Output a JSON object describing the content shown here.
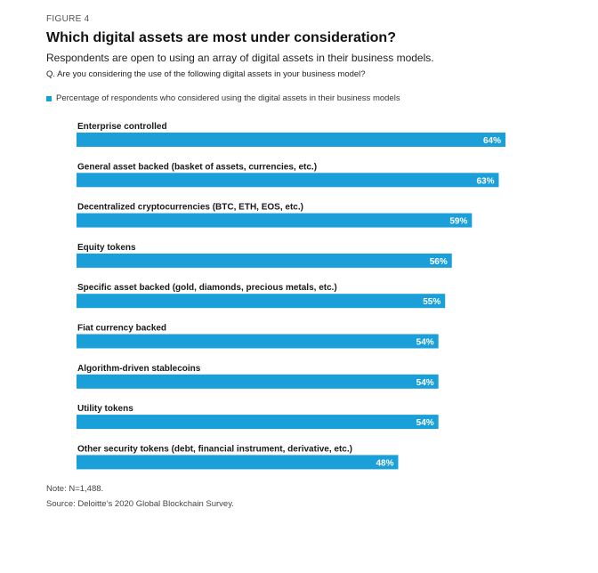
{
  "figure_label": "FIGURE 4",
  "title": "Which digital assets are most under consideration?",
  "subtitle": "Respondents are open to using an array of digital assets in their business models.",
  "question": "Q.  Are you considering the use of the following digital assets in your business model?",
  "note": "Note: N=1,488.",
  "source": "Source: Deloitte’s 2020 Global Blockchain Survey.",
  "colors": {
    "bar": "#1a9fd9",
    "bar_label": "#ffffff"
  },
  "chart_data": {
    "type": "bar",
    "orientation": "horizontal",
    "xlim": [
      0,
      64
    ],
    "legend": "top-left",
    "grid": false,
    "categories": [
      "Enterprise controlled",
      "General asset backed (basket of assets, currencies, etc.)",
      "Decentralized cryptocurrencies (BTC, ETH, EOS, etc.)",
      "Equity tokens",
      "Specific asset backed (gold, diamonds, precious metals, etc.)",
      "Fiat currency backed",
      "Algorithm-driven stablecoins",
      "Utility tokens",
      "Other security tokens (debt, financial instrument, derivative, etc.)"
    ],
    "series": [
      {
        "name": "Percentage of respondents who considered using the digital assets in their business models",
        "values": [
          64,
          63,
          59,
          56,
          55,
          54,
          54,
          54,
          48
        ]
      }
    ],
    "value_labels": [
      "64%",
      "63%",
      "59%",
      "56%",
      "55%",
      "54%",
      "54%",
      "54%",
      "48%"
    ]
  }
}
